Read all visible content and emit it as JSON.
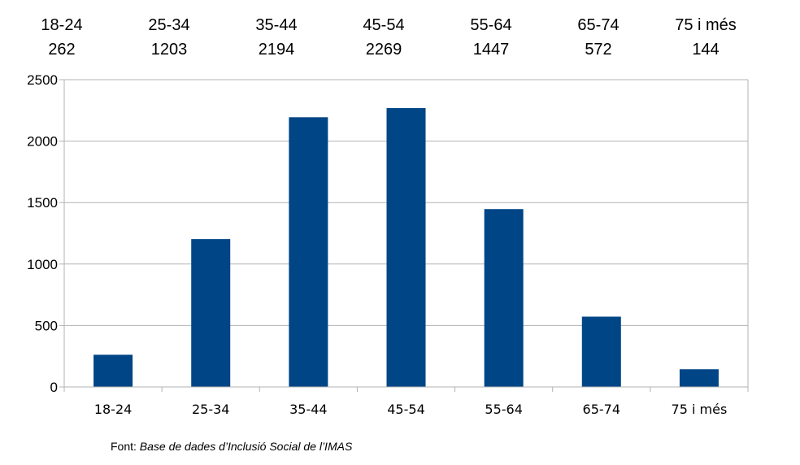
{
  "chart_data": {
    "type": "bar",
    "categories": [
      "18-24",
      "25-34",
      "35-44",
      "45-54",
      "55-64",
      "65-74",
      "75 i més"
    ],
    "values": [
      262,
      1203,
      2194,
      2269,
      1447,
      572,
      144
    ],
    "ylim": [
      0,
      2500
    ],
    "yticks": [
      0,
      500,
      1000,
      1500,
      2000,
      2500
    ],
    "grid": true,
    "bar_color": "#004586",
    "grid_color": "#b3b3b3",
    "title": "",
    "xlabel": "",
    "ylabel": ""
  },
  "source": {
    "prefix": "Font: ",
    "text": "Base de dades d’Inclusió Social de l’IMAS"
  }
}
